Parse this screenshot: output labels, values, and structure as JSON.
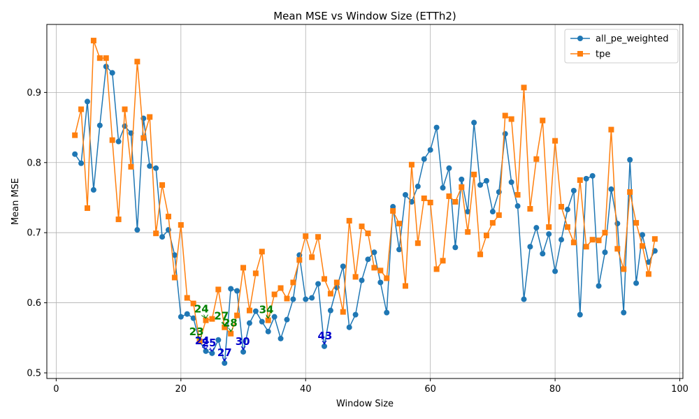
{
  "chart_data": {
    "type": "line",
    "title": "Mean MSE vs Window Size (ETTh2)",
    "xlabel": "Window Size",
    "ylabel": "Mean MSE",
    "xlim": [
      -1.5,
      100.5
    ],
    "ylim": [
      0.492,
      0.997
    ],
    "xticks": [
      0,
      20,
      40,
      60,
      80,
      100
    ],
    "yticks": [
      0.5,
      0.6,
      0.7,
      0.8,
      0.9
    ],
    "grid": true,
    "legend_position": "top-right",
    "x": [
      3,
      4,
      5,
      6,
      7,
      8,
      9,
      10,
      11,
      12,
      13,
      14,
      15,
      16,
      17,
      18,
      19,
      20,
      21,
      22,
      23,
      24,
      25,
      26,
      27,
      28,
      29,
      30,
      31,
      32,
      33,
      34,
      35,
      36,
      37,
      38,
      39,
      40,
      41,
      42,
      43,
      44,
      45,
      46,
      47,
      48,
      49,
      50,
      51,
      52,
      53,
      54,
      55,
      56,
      57,
      58,
      59,
      60,
      61,
      62,
      63,
      64,
      65,
      66,
      67,
      68,
      69,
      70,
      71,
      72,
      73,
      74,
      75,
      76,
      77,
      78,
      79,
      80,
      81,
      82,
      83,
      84,
      85,
      86,
      87,
      88,
      89,
      90,
      91,
      92,
      93,
      94,
      95,
      96
    ],
    "series": [
      {
        "name": "all_pe_weighted",
        "color": "#1f77b4",
        "marker": "circle",
        "values": [
          0.812,
          0.799,
          0.887,
          0.761,
          0.853,
          0.937,
          0.928,
          0.83,
          0.852,
          0.842,
          0.704,
          0.863,
          0.795,
          0.792,
          0.694,
          0.704,
          0.668,
          0.58,
          0.584,
          0.578,
          0.545,
          0.531,
          0.528,
          0.547,
          0.514,
          0.62,
          0.617,
          0.53,
          0.571,
          0.588,
          0.573,
          0.559,
          0.58,
          0.549,
          0.576,
          0.605,
          0.668,
          0.605,
          0.607,
          0.627,
          0.538,
          0.589,
          0.622,
          0.652,
          0.565,
          0.583,
          0.632,
          0.662,
          0.672,
          0.629,
          0.586,
          0.737,
          0.676,
          0.754,
          0.744,
          0.766,
          0.805,
          0.818,
          0.85,
          0.764,
          0.792,
          0.679,
          0.776,
          0.73,
          0.857,
          0.768,
          0.774,
          0.73,
          0.758,
          0.841,
          0.772,
          0.738,
          0.605,
          0.68,
          0.707,
          0.67,
          0.698,
          0.645,
          0.69,
          0.733,
          0.76,
          0.583,
          0.777,
          0.781,
          0.624,
          0.672,
          0.762,
          0.713,
          0.586,
          0.804,
          0.628,
          0.697,
          0.658,
          0.674
        ]
      },
      {
        "name": "tpe",
        "color": "#ff7f0e",
        "marker": "square",
        "values": [
          0.839,
          0.876,
          0.735,
          0.974,
          0.949,
          0.949,
          0.832,
          0.719,
          0.876,
          0.794,
          0.944,
          0.835,
          0.865,
          0.699,
          0.768,
          0.723,
          0.636,
          0.711,
          0.607,
          0.599,
          0.545,
          0.575,
          0.577,
          0.619,
          0.565,
          0.556,
          0.582,
          0.65,
          0.589,
          0.642,
          0.673,
          0.575,
          0.612,
          0.621,
          0.606,
          0.629,
          0.661,
          0.695,
          0.665,
          0.694,
          0.634,
          0.613,
          0.629,
          0.587,
          0.717,
          0.637,
          0.709,
          0.699,
          0.65,
          0.646,
          0.635,
          0.731,
          0.713,
          0.624,
          0.797,
          0.685,
          0.749,
          0.743,
          0.648,
          0.66,
          0.752,
          0.744,
          0.765,
          0.701,
          0.783,
          0.669,
          0.696,
          0.714,
          0.725,
          0.867,
          0.862,
          0.754,
          0.907,
          0.734,
          0.805,
          0.86,
          0.708,
          0.831,
          0.737,
          0.708,
          0.686,
          0.775,
          0.68,
          0.69,
          0.689,
          0.7,
          0.847,
          0.677,
          0.648,
          0.758,
          0.714,
          0.681,
          0.641,
          0.691
        ]
      }
    ],
    "annotations": [
      {
        "text": "23",
        "x": 23,
        "y": 0.545,
        "tx": 22.5,
        "ty": 0.552,
        "color": "#008000",
        "series": "tpe"
      },
      {
        "text": "24",
        "x": 24,
        "y": 0.575,
        "tx": 23.3,
        "ty": 0.584,
        "color": "#008000",
        "series": "tpe"
      },
      {
        "text": "27",
        "x": 27,
        "y": 0.565,
        "tx": 26.5,
        "ty": 0.574,
        "color": "#008000",
        "series": "tpe"
      },
      {
        "text": "28",
        "x": 28,
        "y": 0.556,
        "tx": 27.9,
        "ty": 0.564,
        "color": "#008000",
        "series": "tpe"
      },
      {
        "text": "34",
        "x": 34,
        "y": 0.575,
        "tx": 33.7,
        "ty": 0.583,
        "color": "#008000",
        "series": "tpe"
      },
      {
        "text": "24",
        "x": 24,
        "y": 0.531,
        "tx": 23.4,
        "ty": 0.539,
        "color": "#0000cc",
        "series": "all_pe_weighted"
      },
      {
        "text": "25",
        "x": 25,
        "y": 0.528,
        "tx": 24.5,
        "ty": 0.536,
        "color": "#0000cc",
        "series": "all_pe_weighted"
      },
      {
        "text": "27",
        "x": 27,
        "y": 0.514,
        "tx": 27.0,
        "ty": 0.522,
        "color": "#0000cc",
        "series": "all_pe_weighted"
      },
      {
        "text": "30",
        "x": 30,
        "y": 0.53,
        "tx": 29.9,
        "ty": 0.538,
        "color": "#0000cc",
        "series": "all_pe_weighted"
      },
      {
        "text": "43",
        "x": 43,
        "y": 0.538,
        "tx": 43.1,
        "ty": 0.546,
        "color": "#0000cc",
        "series": "all_pe_weighted"
      }
    ]
  }
}
